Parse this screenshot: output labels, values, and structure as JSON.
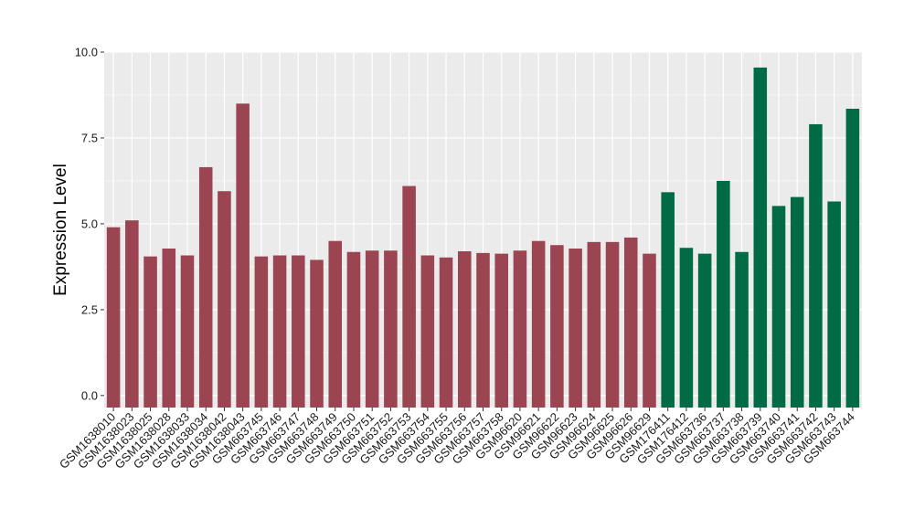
{
  "chart_data": {
    "type": "bar",
    "title": "",
    "xlabel": "",
    "ylabel": "Expression Level",
    "ylim": [
      -0.35,
      10.0
    ],
    "yticks": [
      0.0,
      2.5,
      5.0,
      7.5,
      10.0
    ],
    "ytick_labels": [
      "0.0",
      "2.5",
      "5.0",
      "7.5",
      "10.0"
    ],
    "grid": true,
    "legend": "none",
    "colors": {
      "panel_bg": "#ebebeb",
      "grid": "#ffffff",
      "group_a": "#9b4552",
      "group_b": "#006b45"
    },
    "categories": [
      "GSM1638010",
      "GSM1638023",
      "GSM1638025",
      "GSM1638028",
      "GSM1638033",
      "GSM1638034",
      "GSM1638042",
      "GSM1638043",
      "GSM663745",
      "GSM663746",
      "GSM663747",
      "GSM663748",
      "GSM663749",
      "GSM663750",
      "GSM663751",
      "GSM663752",
      "GSM663753",
      "GSM663754",
      "GSM663755",
      "GSM663756",
      "GSM663757",
      "GSM663758",
      "GSM96620",
      "GSM96621",
      "GSM96622",
      "GSM96623",
      "GSM96624",
      "GSM96625",
      "GSM96626",
      "GSM96629",
      "GSM176411",
      "GSM176412",
      "GSM663736",
      "GSM663737",
      "GSM663738",
      "GSM663739",
      "GSM663740",
      "GSM663741",
      "GSM663742",
      "GSM663743",
      "GSM663744"
    ],
    "values": [
      4.9,
      5.1,
      4.05,
      4.28,
      4.08,
      6.65,
      5.95,
      8.5,
      4.05,
      4.08,
      4.08,
      3.95,
      4.5,
      4.18,
      4.22,
      4.22,
      6.1,
      4.08,
      4.02,
      4.2,
      4.15,
      4.13,
      4.22,
      4.5,
      4.38,
      4.28,
      4.47,
      4.47,
      4.6,
      4.13,
      5.92,
      4.3,
      4.13,
      6.25,
      4.18,
      9.55,
      5.52,
      5.78,
      7.9,
      5.65,
      8.35
    ],
    "bar_colors": [
      "#9b4552",
      "#9b4552",
      "#9b4552",
      "#9b4552",
      "#9b4552",
      "#9b4552",
      "#9b4552",
      "#9b4552",
      "#9b4552",
      "#9b4552",
      "#9b4552",
      "#9b4552",
      "#9b4552",
      "#9b4552",
      "#9b4552",
      "#9b4552",
      "#9b4552",
      "#9b4552",
      "#9b4552",
      "#9b4552",
      "#9b4552",
      "#9b4552",
      "#9b4552",
      "#9b4552",
      "#9b4552",
      "#9b4552",
      "#9b4552",
      "#9b4552",
      "#9b4552",
      "#9b4552",
      "#006b45",
      "#006b45",
      "#006b45",
      "#006b45",
      "#006b45",
      "#006b45",
      "#006b45",
      "#006b45",
      "#006b45",
      "#006b45",
      "#006b45"
    ]
  }
}
